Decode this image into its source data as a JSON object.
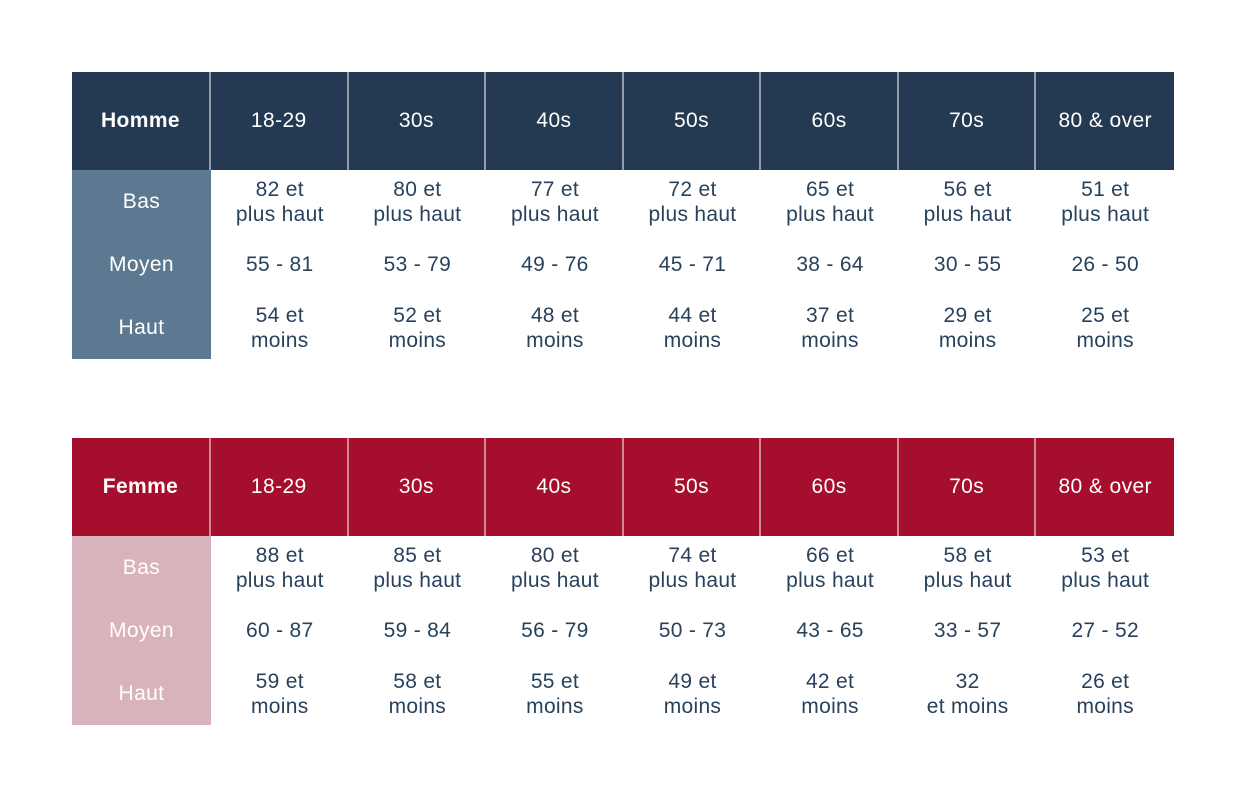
{
  "chart_data": [
    {
      "type": "table",
      "title": "Homme",
      "columns": [
        "18-29",
        "30s",
        "40s",
        "50s",
        "60s",
        "70s",
        "80 & over"
      ],
      "rows": [
        {
          "label": "Bas",
          "values": [
            "82 et\nplus haut",
            "80 et\nplus haut",
            "77 et\nplus haut",
            "72 et\nplus haut",
            "65 et\nplus haut",
            "56 et\nplus haut",
            "51 et\nplus haut"
          ]
        },
        {
          "label": "Moyen",
          "values": [
            "55 - 81",
            "53 - 79",
            "49 - 76",
            "45 - 71",
            "38 - 64",
            "30 - 55",
            "26 - 50"
          ]
        },
        {
          "label": "Haut",
          "values": [
            "54 et\nmoins",
            "52 et\nmoins",
            "48 et\nmoins",
            "44 et\nmoins",
            "37 et\nmoins",
            "29 et\nmoins",
            "25 et\nmoins"
          ]
        }
      ],
      "colors": {
        "header_bg": "#243A52",
        "label_bg": "#5D7991",
        "header_text": "#FFFFFF",
        "value_text": "#29425C"
      }
    },
    {
      "type": "table",
      "title": "Femme",
      "columns": [
        "18-29",
        "30s",
        "40s",
        "50s",
        "60s",
        "70s",
        "80 & over"
      ],
      "rows": [
        {
          "label": "Bas",
          "values": [
            "88 et\nplus haut",
            "85 et\nplus haut",
            "80 et\nplus haut",
            "74 et\nplus haut",
            "66 et\nplus haut",
            "58 et\nplus haut",
            "53 et\nplus haut"
          ]
        },
        {
          "label": "Moyen",
          "values": [
            "60 - 87",
            "59 - 84",
            "56 - 79",
            "50 - 73",
            "43 - 65",
            "33 - 57",
            "27 - 52"
          ]
        },
        {
          "label": "Haut",
          "values": [
            "59 et\nmoins",
            "58 et\nmoins",
            "55 et\nmoins",
            "49 et\nmoins",
            "42 et\nmoins",
            "32\net moins",
            "26 et\nmoins"
          ]
        }
      ],
      "colors": {
        "header_bg": "#A50E2C",
        "label_bg": "#D9B3BC",
        "header_text": "#FFFFFF",
        "value_text": "#29425C"
      }
    }
  ]
}
